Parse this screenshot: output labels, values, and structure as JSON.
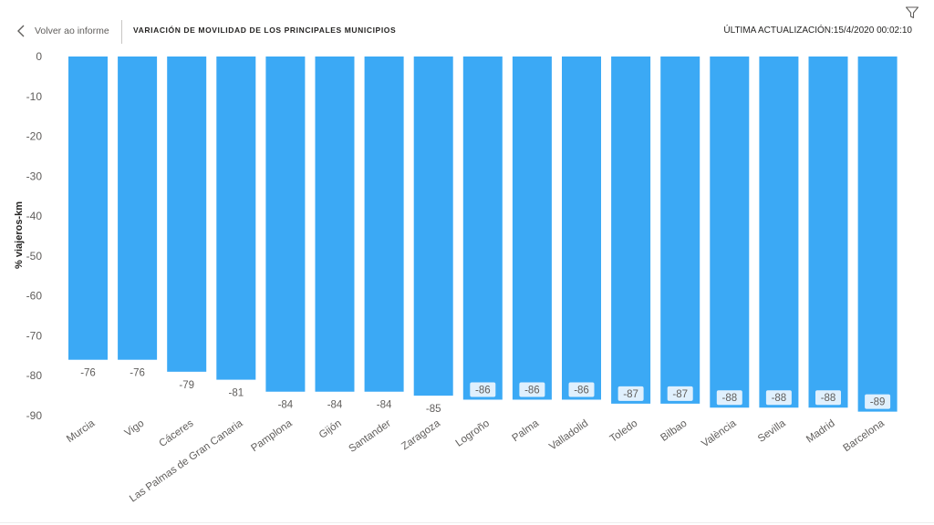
{
  "header": {
    "back_label": "Volver ao informe",
    "title": "VARIACIÓN DE MOVILIDAD DE LOS PRINCIPALES MUNICIPIOS",
    "last_update": "ÚLTIMA ACTUALIZACIÓN:15/4/2020 00:02:10",
    "back_icon": "chevron-left-icon",
    "filter_icon": "filter-icon"
  },
  "colors": {
    "bar": "#3ba9f5",
    "label_box": "#e0f0fd"
  },
  "chart_data": {
    "type": "bar",
    "ylabel": "% viajeros-km",
    "ylim": [
      -90,
      0
    ],
    "yticks": [
      0,
      -10,
      -20,
      -30,
      -40,
      -50,
      -60,
      -70,
      -80,
      -90
    ],
    "grid": false,
    "categories": [
      "Murcia",
      "Vigo",
      "Cáceres",
      "Las Palmas de Gran Canaria",
      "Pamplona",
      "Gijón",
      "Santander",
      "Zaragoza",
      "Logroño",
      "Palma",
      "Valladolid",
      "Toledo",
      "Bilbao",
      "València",
      "Sevilla",
      "Madrid",
      "Barcelona"
    ],
    "values": [
      -76,
      -76,
      -79,
      -81,
      -84,
      -84,
      -84,
      -85,
      -86,
      -86,
      -86,
      -87,
      -87,
      -88,
      -88,
      -88,
      -89
    ],
    "data_labels": [
      "-76",
      "-76",
      "-79",
      "-81",
      "-84",
      "-84",
      "-84",
      "-85",
      "-86",
      "-86",
      "-86",
      "-87",
      "-87",
      "-88",
      "-88",
      "-88",
      "-89"
    ]
  }
}
